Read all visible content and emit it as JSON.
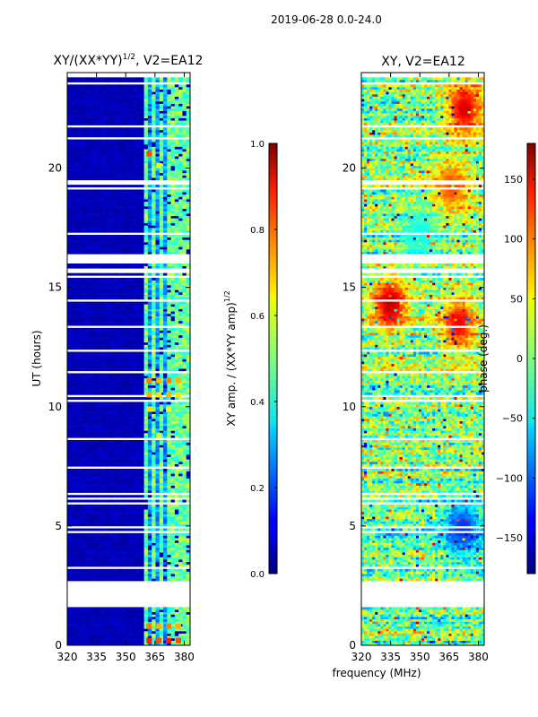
{
  "figure_title": "2019-06-28 0.0-24.0",
  "xlabel_shared": "frequency (MHz)",
  "colors": {
    "no_data": "#ffffff",
    "frame": "#000000"
  },
  "chart_data": [
    {
      "type": "heatmap",
      "title_main": "XY/(XX*YY)",
      "title_sup": "1/2",
      "title_tail": ", V2=EA12",
      "xlabel": "",
      "ylabel": "UT (hours)",
      "xlim": [
        320,
        383
      ],
      "ylim": [
        0,
        24
      ],
      "xticks": [
        320,
        335,
        350,
        365,
        380
      ],
      "yticks": [
        0,
        5,
        10,
        15,
        20
      ],
      "grid": false,
      "colormap": "jet",
      "colorbar": {
        "label": "XY amp. / (XX*YY amp)",
        "label_sup": "1/2",
        "range": [
          0.0,
          1.0
        ],
        "ticks": [
          "0.0",
          "0.2",
          "0.4",
          "0.6",
          "0.8",
          "1.0"
        ],
        "tick_values": [
          0.0,
          0.2,
          0.4,
          0.6,
          0.8,
          1.0
        ]
      },
      "dense_band_mhz": [
        360,
        383
      ],
      "band_columns_mhz": [
        361,
        365,
        369,
        373,
        377,
        381
      ],
      "data_blocks_hours": [
        [
          0.0,
          1.6
        ],
        [
          2.7,
          15.6
        ],
        [
          15.8,
          23.8
        ]
      ],
      "hot_spots": [
        {
          "freq_mhz": 362,
          "ut_hours": 0.2,
          "value": 0.85
        },
        {
          "freq_mhz": 367,
          "ut_hours": 0.2,
          "value": 0.8
        },
        {
          "freq_mhz": 372,
          "ut_hours": 0.2,
          "value": 0.85
        },
        {
          "freq_mhz": 377,
          "ut_hours": 0.2,
          "value": 0.8
        },
        {
          "freq_mhz": 362,
          "ut_hours": 0.8,
          "value": 0.75
        },
        {
          "freq_mhz": 367,
          "ut_hours": 0.8,
          "value": 0.7
        },
        {
          "freq_mhz": 372,
          "ut_hours": 0.8,
          "value": 0.75
        },
        {
          "freq_mhz": 377,
          "ut_hours": 0.8,
          "value": 0.7
        },
        {
          "freq_mhz": 362,
          "ut_hours": 10.5,
          "value": 0.7
        },
        {
          "freq_mhz": 367,
          "ut_hours": 10.5,
          "value": 0.65
        },
        {
          "freq_mhz": 372,
          "ut_hours": 10.5,
          "value": 0.7
        },
        {
          "freq_mhz": 377,
          "ut_hours": 10.5,
          "value": 0.65
        },
        {
          "freq_mhz": 362,
          "ut_hours": 11.1,
          "value": 0.75
        },
        {
          "freq_mhz": 367,
          "ut_hours": 11.1,
          "value": 0.7
        },
        {
          "freq_mhz": 372,
          "ut_hours": 11.1,
          "value": 0.75
        },
        {
          "freq_mhz": 377,
          "ut_hours": 11.1,
          "value": 0.7
        },
        {
          "freq_mhz": 362,
          "ut_hours": 9.9,
          "value": 0.65
        },
        {
          "freq_mhz": 372,
          "ut_hours": 9.9,
          "value": 0.6
        },
        {
          "freq_mhz": 367,
          "ut_hours": 8.8,
          "value": 0.6
        },
        {
          "freq_mhz": 362,
          "ut_hours": 20.6,
          "value": 0.8
        },
        {
          "freq_mhz": 367,
          "ut_hours": 20.1,
          "value": 0.6
        }
      ]
    },
    {
      "type": "heatmap",
      "title_main": "XY, V2=EA12",
      "title_sup": "",
      "title_tail": "",
      "xlabel": "frequency (MHz)",
      "ylabel": "",
      "xlim": [
        320,
        383
      ],
      "ylim": [
        0,
        24
      ],
      "xticks": [
        320,
        335,
        350,
        365,
        380
      ],
      "yticks": [
        0,
        5,
        10,
        15,
        20
      ],
      "grid": false,
      "colormap": "jet",
      "colorbar": {
        "label": "phase (deg.)",
        "label_sup": "",
        "range": [
          -180,
          180
        ],
        "ticks": [
          "−150",
          "−100",
          "−50",
          "0",
          "50",
          "100",
          "150"
        ],
        "tick_values": [
          -150,
          -100,
          -50,
          0,
          50,
          100,
          150
        ]
      },
      "data_blocks_hours": [
        [
          0.0,
          1.6
        ],
        [
          2.7,
          15.6
        ],
        [
          15.8,
          23.8
        ]
      ],
      "features": [
        {
          "freq_mhz": 373,
          "ut_hours": 22.5,
          "value": 150
        },
        {
          "freq_mhz": 366,
          "ut_hours": 19.2,
          "value": 110
        },
        {
          "freq_mhz": 335,
          "ut_hours": 14.3,
          "value": 160
        },
        {
          "freq_mhz": 370,
          "ut_hours": 13.5,
          "value": 140
        },
        {
          "freq_mhz": 372,
          "ut_hours": 4.9,
          "value": -120
        },
        {
          "freq_mhz": 350,
          "ut_hours": 17.2,
          "value": -40
        }
      ]
    }
  ]
}
